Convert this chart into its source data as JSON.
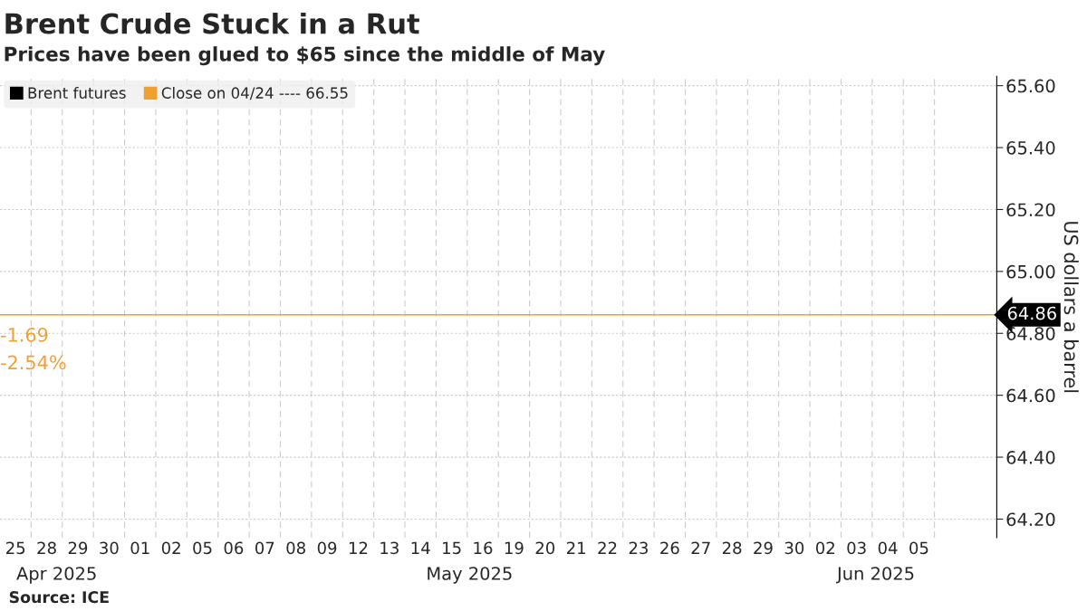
{
  "chart_data": {
    "type": "line",
    "title": "Brent Crude Stuck in a Rut",
    "subtitle": "Prices have been glued to $65 since the middle of May",
    "ylabel": "US dollars a barrel",
    "categories": [
      "25",
      "28",
      "29",
      "30",
      "01",
      "02",
      "05",
      "06",
      "07",
      "08",
      "09",
      "12",
      "13",
      "14",
      "15",
      "16",
      "19",
      "20",
      "21",
      "22",
      "23",
      "26",
      "27",
      "28",
      "29",
      "30",
      "02",
      "03",
      "04",
      "05"
    ],
    "series": [
      {
        "name": "Brent futures",
        "color": "#000000",
        "values": [
          null,
          null,
          null,
          null,
          null,
          null,
          null,
          null,
          null,
          null,
          null,
          null,
          null,
          null,
          null,
          null,
          null,
          null,
          null,
          null,
          null,
          null,
          null,
          null,
          null,
          null,
          null,
          null,
          null,
          null
        ]
      },
      {
        "name": "Close on 04/24 ---- 66.55",
        "color": "#f0a030",
        "values": [
          null,
          null,
          null,
          null,
          null,
          null,
          null,
          null,
          null,
          null,
          null,
          null,
          null,
          null,
          null,
          null,
          null,
          null,
          null,
          null,
          null,
          null,
          null,
          null,
          null,
          null,
          null,
          null,
          null,
          null
        ]
      }
    ],
    "ref_lines": [
      {
        "axis": "y",
        "value": 64.86,
        "label": "64.86",
        "color": "#f0a030"
      }
    ],
    "ylim": [
      64.14,
      65.63
    ],
    "yticks": [
      {
        "value": 64.2,
        "label": "64.20"
      },
      {
        "value": 64.4,
        "label": "64.40"
      },
      {
        "value": 64.6,
        "label": "64.60"
      },
      {
        "value": 64.8,
        "label": "64.80"
      },
      {
        "value": 65.0,
        "label": "65.00"
      },
      {
        "value": 65.2,
        "label": "65.20"
      },
      {
        "value": 65.4,
        "label": "65.40"
      },
      {
        "value": 65.6,
        "label": "65.60"
      }
    ],
    "annotations": [
      {
        "text": "-1.69",
        "x": "25",
        "y": 64.86
      },
      {
        "text": "-2.54%",
        "x": "25",
        "y": 64.86
      },
      "Apr 2025",
      "May 2025",
      "Jun 2025",
      "Source: ICE"
    ],
    "grid": true,
    "legend": "top left"
  }
}
